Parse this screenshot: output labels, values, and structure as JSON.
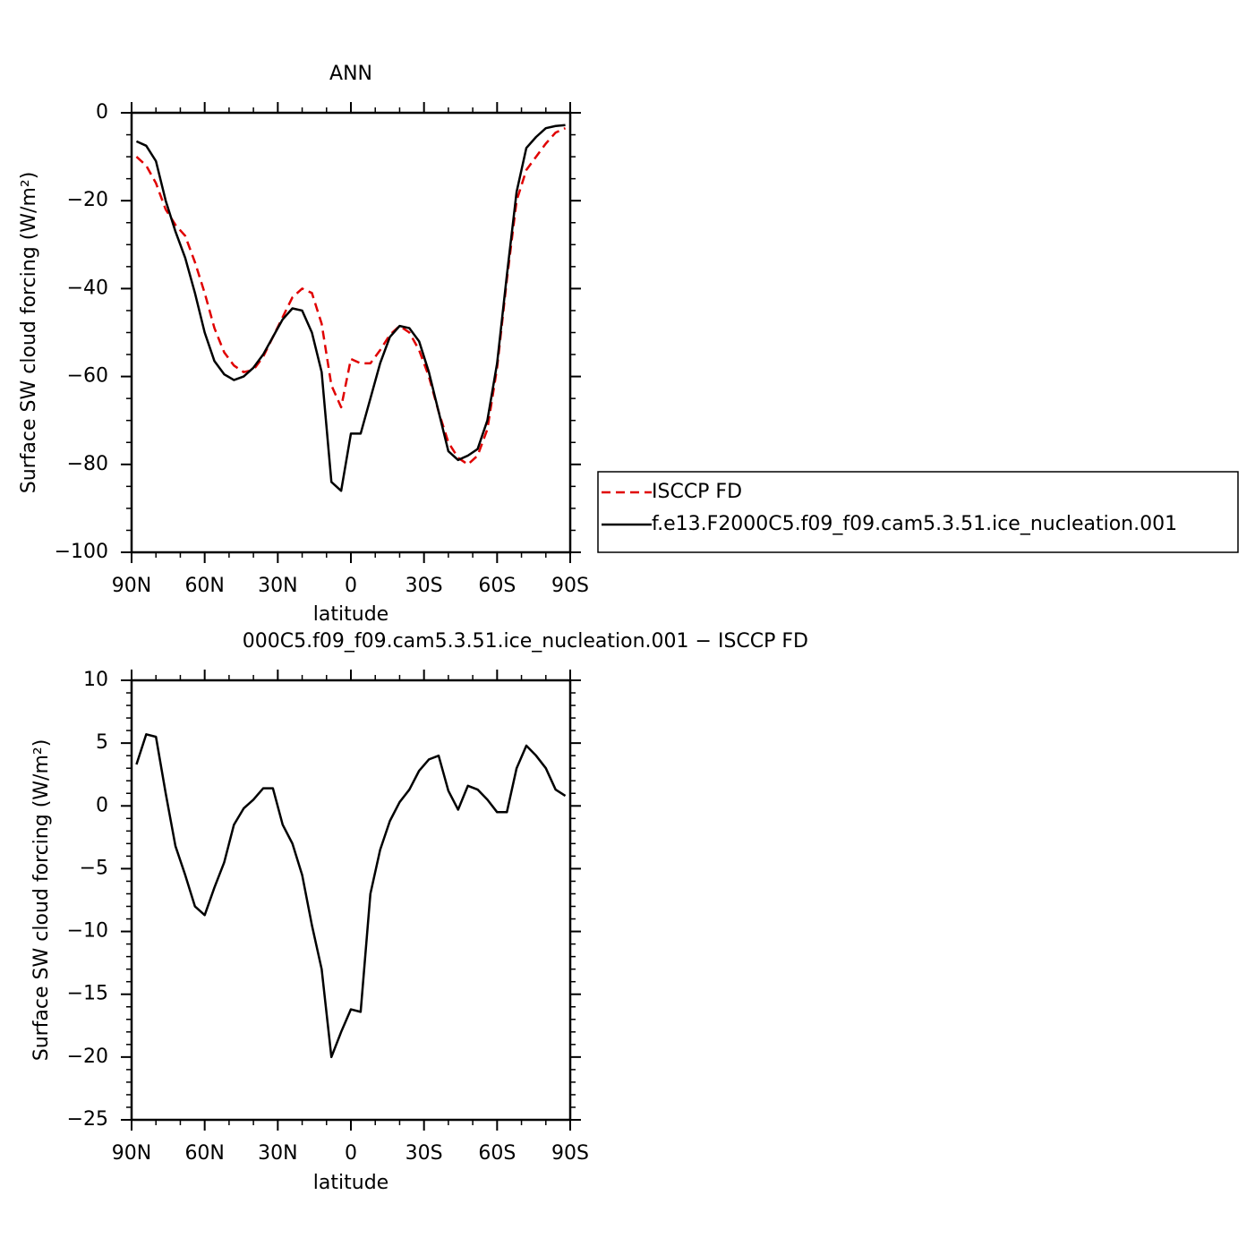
{
  "chart_data": [
    {
      "type": "line",
      "title": "ANN",
      "x_label": "latitude",
      "y_label": "Surface SW cloud forcing (W/m²)",
      "x": [
        88,
        84,
        80,
        76,
        72,
        68,
        64,
        60,
        56,
        52,
        48,
        44,
        40,
        36,
        32,
        28,
        24,
        20,
        16,
        12,
        8,
        4,
        0,
        -4,
        -8,
        -12,
        -16,
        -20,
        -24,
        -28,
        -32,
        -36,
        -40,
        -44,
        -48,
        -52,
        -56,
        -60,
        -64,
        -68,
        -72,
        -76,
        -80,
        -84,
        -88
      ],
      "series": [
        {
          "name": "ISCCP FD",
          "color": "#e00000",
          "style": "dashed",
          "values": [
            -10,
            -12,
            -16,
            -22,
            -25.5,
            -28,
            -34,
            -41,
            -49,
            -54.5,
            -57.5,
            -59,
            -58.5,
            -55.5,
            -51,
            -46.5,
            -42,
            -40,
            -41,
            -48,
            -62,
            -67,
            -56,
            -57,
            -57,
            -54,
            -50.5,
            -48.5,
            -50,
            -54,
            -60,
            -68,
            -75,
            -78.5,
            -80,
            -78,
            -72,
            -58,
            -38,
            -20,
            -13,
            -10,
            -7,
            -4.5,
            -3.5
          ]
        },
        {
          "name": "f.e13.F2000C5.f09_f09.cam5.3.51.ice_nucleation.001",
          "color": "#000000",
          "style": "solid",
          "values": [
            -6.5,
            -7.5,
            -11,
            -20,
            -27,
            -33,
            -41,
            -50,
            -56.5,
            -59.5,
            -60.8,
            -60,
            -58,
            -55,
            -51,
            -47,
            -44.5,
            -45,
            -50,
            -59,
            -84,
            -86,
            -73,
            -73,
            -65,
            -57,
            -51,
            -48.5,
            -49,
            -52,
            -59,
            -68,
            -77,
            -79,
            -78,
            -76.5,
            -70,
            -57,
            -37,
            -18,
            -8,
            -5.5,
            -3.5,
            -3,
            -2.8
          ]
        }
      ],
      "xlim": [
        90,
        -90
      ],
      "xticks": [
        {
          "value": 90,
          "label": "90N"
        },
        {
          "value": 60,
          "label": "60N"
        },
        {
          "value": 30,
          "label": "30N"
        },
        0,
        {
          "value": -30,
          "label": "30S"
        },
        {
          "value": -60,
          "label": "60S"
        },
        {
          "value": -90,
          "label": "90S"
        }
      ],
      "ylim": [
        -100,
        0
      ],
      "yticks": [
        {
          "value": -100,
          "label": "−100"
        },
        {
          "value": -80,
          "label": "−80"
        },
        {
          "value": -60,
          "label": "−60"
        },
        {
          "value": -40,
          "label": "−40"
        },
        {
          "value": -20,
          "label": "−20"
        },
        0
      ],
      "legend": "right"
    },
    {
      "type": "line",
      "title": "000C5.f09_f09.cam5.3.51.ice_nucleation.001 − ISCCP FD",
      "x_label": "latitude",
      "y_label": "Surface SW cloud forcing (W/m²)",
      "x": [
        88,
        84,
        80,
        76,
        72,
        68,
        64,
        60,
        56,
        52,
        48,
        44,
        40,
        36,
        32,
        28,
        24,
        20,
        16,
        12,
        8,
        4,
        0,
        -4,
        -8,
        -12,
        -16,
        -20,
        -24,
        -28,
        -32,
        -36,
        -40,
        -44,
        -48,
        -52,
        -56,
        -60,
        -64,
        -68,
        -72,
        -76,
        -80,
        -84,
        -88
      ],
      "series": [
        {
          "color": "#000000",
          "style": "solid",
          "values": [
            3.3,
            5.7,
            5.5,
            1,
            -3.2,
            -5.5,
            -8,
            -8.7,
            -6.5,
            -4.5,
            -1.5,
            -0.2,
            0.5,
            1.4,
            1.4,
            -1.5,
            -3,
            -5.5,
            -9.5,
            -13,
            -20,
            -18,
            -16.2,
            -16.4,
            -7,
            -3.5,
            -1.2,
            0.3,
            1.3,
            2.8,
            3.7,
            4,
            1.2,
            -0.3,
            1.6,
            1.3,
            0.5,
            -0.5,
            -0.5,
            3,
            4.8,
            4,
            3,
            1.3,
            0.8
          ]
        }
      ],
      "xlim": [
        90,
        -90
      ],
      "xticks": [
        {
          "value": 90,
          "label": "90N"
        },
        {
          "value": 60,
          "label": "60N"
        },
        {
          "value": 30,
          "label": "30N"
        },
        0,
        {
          "value": -30,
          "label": "30S"
        },
        {
          "value": -60,
          "label": "60S"
        },
        {
          "value": -90,
          "label": "90S"
        }
      ],
      "ylim": [
        -25,
        10
      ],
      "yticks": [
        {
          "value": -25,
          "label": "−25"
        },
        {
          "value": -20,
          "label": "−20"
        },
        {
          "value": -15,
          "label": "−15"
        },
        {
          "value": -10,
          "label": "−10"
        },
        {
          "value": -5,
          "label": "−5"
        },
        0,
        5,
        10
      ]
    }
  ]
}
